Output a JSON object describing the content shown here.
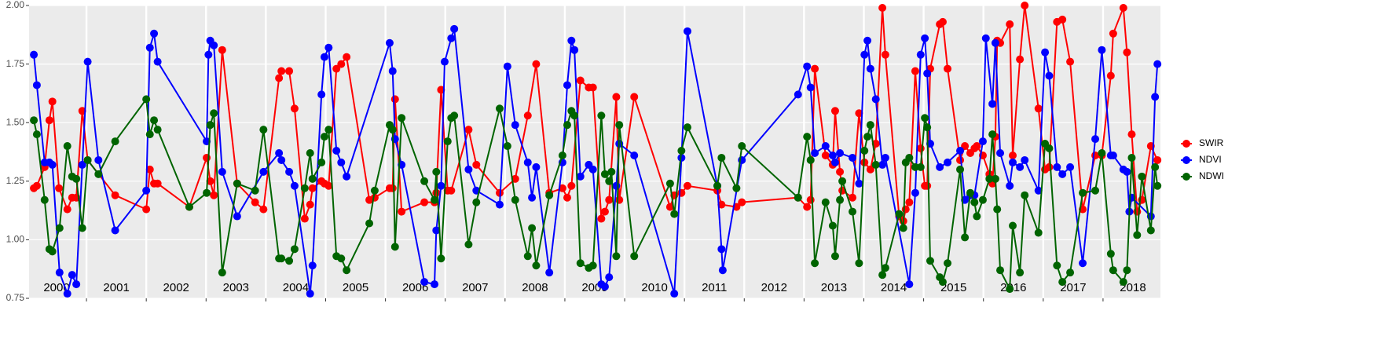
{
  "chart_data": {
    "type": "line",
    "xlim": [
      2000.04,
      2018.96
    ],
    "xticks": [
      2001,
      2002,
      2003,
      2004,
      2005,
      2006,
      2007,
      2008,
      2009,
      2010,
      2011,
      2012,
      2013,
      2014,
      2015,
      2016,
      2017,
      2018
    ],
    "year_labels": [
      {
        "value": 2000.5,
        "label": "2000"
      },
      {
        "value": 2001.5,
        "label": "2001"
      },
      {
        "value": 2002.5,
        "label": "2002"
      },
      {
        "value": 2003.5,
        "label": "2003"
      },
      {
        "value": 2004.5,
        "label": "2004"
      },
      {
        "value": 2005.5,
        "label": "2005"
      },
      {
        "value": 2006.5,
        "label": "2006"
      },
      {
        "value": 2007.5,
        "label": "2007"
      },
      {
        "value": 2008.5,
        "label": "2008"
      },
      {
        "value": 2009.5,
        "label": "2009"
      },
      {
        "value": 2010.5,
        "label": "2010"
      },
      {
        "value": 2011.5,
        "label": "2011"
      },
      {
        "value": 2012.5,
        "label": "2012"
      },
      {
        "value": 2013.5,
        "label": "2013"
      },
      {
        "value": 2014.5,
        "label": "2014"
      },
      {
        "value": 2015.5,
        "label": "2015"
      },
      {
        "value": 2016.5,
        "label": "2016"
      },
      {
        "value": 2017.5,
        "label": "2017"
      },
      {
        "value": 2018.5,
        "label": "2018"
      }
    ],
    "ylim": [
      0.75,
      2.0
    ],
    "yticks": [
      {
        "value": 0.75,
        "label": "0.75"
      },
      {
        "value": 1.0,
        "label": "1.00"
      },
      {
        "value": 1.25,
        "label": "1.25"
      },
      {
        "value": 1.5,
        "label": "1.50"
      },
      {
        "value": 1.75,
        "label": "1.75"
      },
      {
        "value": 2.0,
        "label": "2.00"
      }
    ],
    "grid": true,
    "legend": "right",
    "series": [
      {
        "name": "SWIR",
        "color": "#ff0000",
        "x": [
          2000.12,
          2000.17,
          2000.3,
          2000.38,
          2000.43,
          2000.54,
          2000.68,
          2000.76,
          2000.83,
          2000.93,
          2001.02,
          2001.48,
          2002.0,
          2002.06,
          2002.13,
          2002.19,
          2002.72,
          2003.01,
          2003.07,
          2003.13,
          2003.27,
          2003.52,
          2003.82,
          2003.96,
          2004.22,
          2004.26,
          2004.39,
          2004.48,
          2004.65,
          2004.74,
          2004.78,
          2004.93,
          2004.98,
          2005.05,
          2005.18,
          2005.26,
          2005.35,
          2005.73,
          2005.82,
          2006.07,
          2006.12,
          2006.16,
          2006.27,
          2006.65,
          2006.82,
          2006.85,
          2006.93,
          2007.04,
          2007.1,
          2007.39,
          2007.52,
          2007.91,
          2008.17,
          2008.38,
          2008.52,
          2008.74,
          2008.96,
          2009.04,
          2009.11,
          2009.26,
          2009.4,
          2009.47,
          2009.61,
          2009.67,
          2009.74,
          2009.86,
          2009.91,
          2010.16,
          2010.76,
          2010.83,
          2010.95,
          2011.05,
          2011.55,
          2011.62,
          2011.87,
          2011.96,
          2012.9,
          2013.05,
          2013.11,
          2013.18,
          2013.36,
          2013.48,
          2013.52,
          2013.6,
          2013.64,
          2013.81,
          2013.92,
          2014.01,
          2014.11,
          2014.2,
          2014.31,
          2014.36,
          2014.59,
          2014.66,
          2014.7,
          2014.76,
          2014.86,
          2014.95,
          2015.02,
          2015.06,
          2015.11,
          2015.27,
          2015.32,
          2015.4,
          2015.61,
          2015.69,
          2015.78,
          2015.85,
          2015.89,
          2015.99,
          2016.1,
          2016.15,
          2016.2,
          2016.23,
          2016.28,
          2016.44,
          2016.49,
          2016.61,
          2016.69,
          2016.92,
          2017.03,
          2017.1,
          2017.23,
          2017.32,
          2017.45,
          2017.66,
          2017.87,
          2017.98,
          2018.13,
          2018.17,
          2018.34,
          2018.4,
          2018.48,
          2018.57,
          2018.65,
          2018.8,
          2018.91
        ],
        "values": [
          1.22,
          1.23,
          1.31,
          1.51,
          1.59,
          1.22,
          1.13,
          1.18,
          1.18,
          1.55,
          1.34,
          1.19,
          1.13,
          1.3,
          1.24,
          1.24,
          1.14,
          1.35,
          1.25,
          1.19,
          1.81,
          1.24,
          1.16,
          1.13,
          1.69,
          1.72,
          1.72,
          1.56,
          1.09,
          1.15,
          1.22,
          1.25,
          1.24,
          1.23,
          1.73,
          1.75,
          1.78,
          1.17,
          1.18,
          1.22,
          1.22,
          1.6,
          1.12,
          1.16,
          1.16,
          1.2,
          1.64,
          1.21,
          1.21,
          1.47,
          1.32,
          1.2,
          1.26,
          1.53,
          1.75,
          1.2,
          1.22,
          1.18,
          1.23,
          1.68,
          1.65,
          1.65,
          1.09,
          1.12,
          1.17,
          1.61,
          1.17,
          1.61,
          1.14,
          1.19,
          1.2,
          1.23,
          1.21,
          1.15,
          1.14,
          1.16,
          1.18,
          1.14,
          1.17,
          1.73,
          1.36,
          1.32,
          1.55,
          1.29,
          1.21,
          1.18,
          1.54,
          1.33,
          1.3,
          1.41,
          1.99,
          1.79,
          1.1,
          1.08,
          1.13,
          1.16,
          1.72,
          1.39,
          1.23,
          1.23,
          1.73,
          1.92,
          1.93,
          1.73,
          1.34,
          1.4,
          1.37,
          1.39,
          1.4,
          1.36,
          1.28,
          1.24,
          1.44,
          1.85,
          1.84,
          1.92,
          1.36,
          1.77,
          2.0,
          1.56,
          1.3,
          1.31,
          1.93,
          1.94,
          1.76,
          1.13,
          1.36,
          1.36,
          1.7,
          1.88,
          1.99,
          1.8,
          1.45,
          1.12,
          1.17,
          1.4,
          1.34
        ]
      },
      {
        "name": "NDVI",
        "color": "#0000ff",
        "x": [
          2000.12,
          2000.17,
          2000.3,
          2000.38,
          2000.43,
          2000.55,
          2000.68,
          2000.76,
          2000.83,
          2000.93,
          2001.02,
          2001.2,
          2001.48,
          2002.0,
          2002.06,
          2002.13,
          2002.19,
          2003.01,
          2003.04,
          2003.07,
          2003.13,
          2003.27,
          2003.52,
          2003.96,
          2004.22,
          2004.26,
          2004.39,
          2004.48,
          2004.74,
          2004.78,
          2004.93,
          2004.98,
          2005.05,
          2005.18,
          2005.26,
          2005.35,
          2006.07,
          2006.12,
          2006.16,
          2006.27,
          2006.65,
          2006.82,
          2006.85,
          2006.93,
          2006.99,
          2007.1,
          2007.15,
          2007.39,
          2007.52,
          2007.91,
          2008.04,
          2008.17,
          2008.38,
          2008.45,
          2008.52,
          2008.74,
          2008.96,
          2009.04,
          2009.11,
          2009.16,
          2009.26,
          2009.4,
          2009.47,
          2009.61,
          2009.67,
          2009.74,
          2009.86,
          2009.91,
          2010.16,
          2010.83,
          2010.95,
          2011.05,
          2011.55,
          2011.62,
          2011.64,
          2011.96,
          2012.9,
          2013.05,
          2013.11,
          2013.18,
          2013.36,
          2013.48,
          2013.52,
          2013.6,
          2013.81,
          2013.92,
          2014.01,
          2014.06,
          2014.11,
          2014.2,
          2014.31,
          2014.36,
          2014.76,
          2014.86,
          2014.95,
          2015.02,
          2015.06,
          2015.11,
          2015.27,
          2015.4,
          2015.61,
          2015.69,
          2015.78,
          2015.85,
          2015.99,
          2016.04,
          2016.15,
          2016.2,
          2016.28,
          2016.44,
          2016.49,
          2016.61,
          2016.69,
          2016.92,
          2017.03,
          2017.1,
          2017.23,
          2017.32,
          2017.45,
          2017.66,
          2017.87,
          2017.98,
          2018.13,
          2018.17,
          2018.34,
          2018.4,
          2018.44,
          2018.48,
          2018.8,
          2018.87,
          2018.91
        ],
        "values": [
          1.79,
          1.66,
          1.33,
          1.33,
          1.32,
          0.86,
          0.77,
          0.85,
          0.81,
          1.32,
          1.76,
          1.34,
          1.04,
          1.21,
          1.82,
          1.88,
          1.76,
          1.42,
          1.79,
          1.85,
          1.83,
          1.29,
          1.1,
          1.29,
          1.37,
          1.34,
          1.29,
          1.23,
          0.77,
          0.89,
          1.62,
          1.78,
          1.82,
          1.38,
          1.33,
          1.27,
          1.84,
          1.72,
          1.43,
          1.32,
          0.82,
          0.81,
          1.04,
          1.23,
          1.76,
          1.86,
          1.9,
          1.3,
          1.21,
          1.15,
          1.74,
          1.49,
          1.33,
          1.18,
          1.31,
          0.86,
          1.33,
          1.66,
          1.85,
          1.81,
          1.27,
          1.32,
          1.3,
          0.81,
          0.8,
          0.84,
          1.23,
          1.41,
          1.36,
          0.77,
          1.35,
          1.89,
          1.23,
          0.96,
          0.87,
          1.34,
          1.62,
          1.74,
          1.65,
          1.37,
          1.4,
          1.36,
          1.33,
          1.37,
          1.35,
          1.24,
          1.79,
          1.85,
          1.73,
          1.6,
          1.32,
          1.35,
          0.81,
          1.2,
          1.79,
          1.86,
          1.71,
          1.41,
          1.31,
          1.33,
          1.38,
          1.17,
          1.19,
          1.19,
          1.42,
          1.86,
          1.58,
          1.84,
          1.37,
          1.23,
          1.33,
          1.31,
          1.34,
          1.21,
          1.8,
          1.7,
          1.31,
          1.28,
          1.31,
          0.9,
          1.43,
          1.81,
          1.36,
          1.36,
          1.3,
          1.29,
          1.12,
          1.18,
          1.1,
          1.61,
          1.75
        ]
      },
      {
        "name": "NDWI",
        "color": "#006400",
        "x": [
          2000.12,
          2000.17,
          2000.3,
          2000.38,
          2000.43,
          2000.55,
          2000.68,
          2000.76,
          2000.83,
          2000.93,
          2001.02,
          2001.2,
          2001.48,
          2002.0,
          2002.06,
          2002.13,
          2002.19,
          2002.72,
          2003.01,
          2003.07,
          2003.13,
          2003.27,
          2003.52,
          2003.82,
          2003.96,
          2004.22,
          2004.26,
          2004.39,
          2004.48,
          2004.65,
          2004.74,
          2004.78,
          2004.93,
          2004.98,
          2005.05,
          2005.18,
          2005.26,
          2005.35,
          2005.73,
          2005.82,
          2006.07,
          2006.12,
          2006.16,
          2006.27,
          2006.65,
          2006.82,
          2006.85,
          2006.93,
          2007.04,
          2007.1,
          2007.15,
          2007.39,
          2007.52,
          2007.91,
          2008.04,
          2008.17,
          2008.38,
          2008.45,
          2008.52,
          2008.74,
          2008.96,
          2009.04,
          2009.11,
          2009.16,
          2009.26,
          2009.4,
          2009.47,
          2009.61,
          2009.67,
          2009.74,
          2009.78,
          2009.86,
          2009.91,
          2010.16,
          2010.76,
          2010.83,
          2010.95,
          2011.05,
          2011.55,
          2011.62,
          2011.87,
          2011.96,
          2012.9,
          2013.05,
          2013.11,
          2013.18,
          2013.36,
          2013.48,
          2013.52,
          2013.6,
          2013.64,
          2013.81,
          2013.92,
          2014.01,
          2014.06,
          2014.11,
          2014.2,
          2014.31,
          2014.36,
          2014.59,
          2014.66,
          2014.7,
          2014.76,
          2014.86,
          2014.95,
          2015.02,
          2015.06,
          2015.11,
          2015.27,
          2015.32,
          2015.4,
          2015.61,
          2015.69,
          2015.78,
          2015.85,
          2015.89,
          2015.99,
          2016.1,
          2016.15,
          2016.2,
          2016.23,
          2016.28,
          2016.44,
          2016.49,
          2016.61,
          2016.69,
          2016.92,
          2017.03,
          2017.1,
          2017.23,
          2017.32,
          2017.45,
          2017.66,
          2017.87,
          2017.98,
          2018.13,
          2018.17,
          2018.34,
          2018.4,
          2018.48,
          2018.57,
          2018.65,
          2018.8,
          2018.87,
          2018.91
        ],
        "values": [
          1.51,
          1.45,
          1.17,
          0.96,
          0.95,
          1.05,
          1.4,
          1.27,
          1.26,
          1.05,
          1.34,
          1.28,
          1.42,
          1.6,
          1.45,
          1.51,
          1.47,
          1.14,
          1.2,
          1.49,
          1.54,
          0.86,
          1.24,
          1.21,
          1.47,
          0.92,
          0.92,
          0.91,
          0.96,
          1.22,
          1.37,
          1.26,
          1.33,
          1.44,
          1.47,
          0.93,
          0.92,
          0.87,
          1.07,
          1.21,
          1.49,
          1.47,
          0.97,
          1.52,
          1.25,
          1.17,
          1.29,
          0.92,
          1.42,
          1.52,
          1.53,
          0.98,
          1.16,
          1.56,
          1.4,
          1.17,
          0.93,
          1.05,
          0.89,
          1.19,
          1.36,
          1.49,
          1.55,
          1.53,
          0.9,
          0.88,
          0.89,
          1.53,
          1.28,
          1.25,
          1.29,
          0.93,
          1.49,
          0.93,
          1.24,
          1.11,
          1.38,
          1.48,
          1.23,
          1.35,
          1.22,
          1.4,
          1.18,
          1.44,
          1.34,
          0.9,
          1.16,
          1.06,
          0.93,
          1.17,
          1.25,
          1.12,
          0.9,
          1.38,
          1.44,
          1.49,
          1.32,
          0.85,
          0.88,
          1.11,
          1.05,
          1.33,
          1.35,
          1.31,
          1.31,
          1.52,
          1.48,
          0.91,
          0.84,
          0.82,
          0.9,
          1.3,
          1.01,
          1.2,
          1.16,
          1.1,
          1.17,
          1.26,
          1.45,
          1.26,
          1.13,
          0.87,
          0.79,
          1.06,
          0.86,
          1.19,
          1.03,
          1.41,
          1.39,
          0.89,
          0.82,
          0.86,
          1.2,
          1.21,
          1.37,
          0.94,
          0.87,
          0.82,
          0.87,
          1.35,
          1.02,
          1.27,
          1.04,
          1.31,
          1.23
        ]
      }
    ]
  }
}
